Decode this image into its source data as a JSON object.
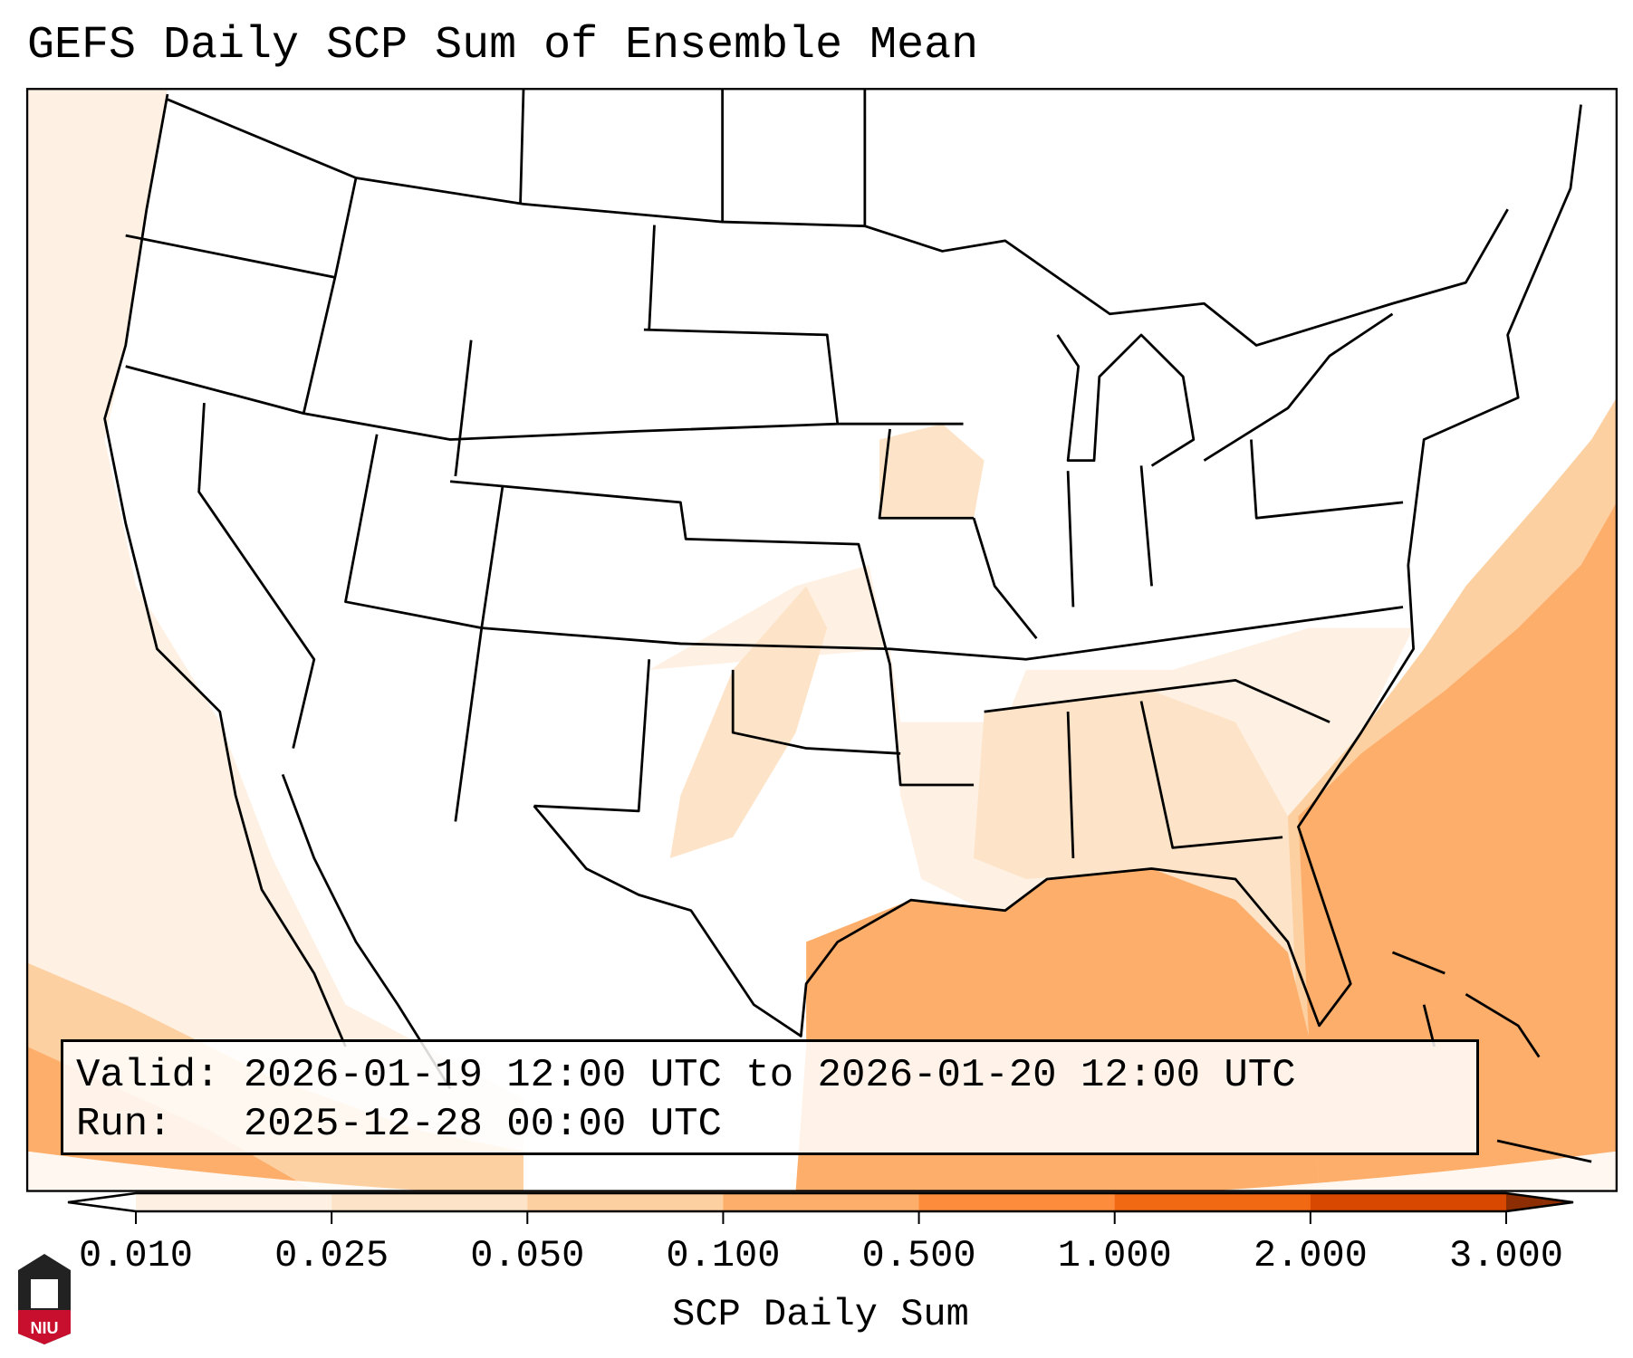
{
  "title": "GEFS Daily SCP Sum of Ensemble Mean",
  "info": {
    "valid_line": "Valid: 2026-01-19 12:00 UTC to 2026-01-20 12:00 UTC",
    "run_line": "Run:   2025-12-28 00:00 UTC"
  },
  "colorbar": {
    "label": "SCP Daily Sum",
    "ticks": [
      "0.010",
      "0.025",
      "0.050",
      "0.100",
      "0.500",
      "1.000",
      "2.000",
      "3.000"
    ],
    "under_color": "#ffffff",
    "over_color": "#8c2d04",
    "bin_colors": [
      "#fef0e2",
      "#fde4c8",
      "#fdd0a2",
      "#fdae6b",
      "#fd8d3c",
      "#f16913",
      "#d94801"
    ]
  },
  "logo": {
    "text": "NIU"
  },
  "colors": {
    "light": "#fef0e2",
    "pale": "#fde4c8",
    "mid": "#fdd0a2",
    "strong": "#fdae6b"
  }
}
